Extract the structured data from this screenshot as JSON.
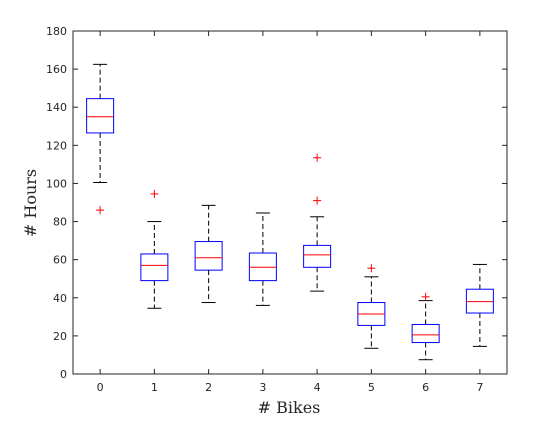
{
  "chart_data": {
    "type": "boxplot",
    "xlabel": "# Bikes",
    "ylabel": "# Hours",
    "ylim": [
      0,
      180
    ],
    "yticks": [
      0,
      20,
      40,
      60,
      80,
      100,
      120,
      140,
      160,
      180
    ],
    "categories": [
      "0",
      "1",
      "2",
      "3",
      "4",
      "5",
      "6",
      "7"
    ],
    "grid": false,
    "colors": {
      "box": "#0000ff",
      "median": "#ff0000",
      "whisker": "#000000",
      "outlier": "#ff0000",
      "axis": "#262626"
    },
    "boxes": [
      {
        "category": "0",
        "whisker_low": 100.5,
        "q1": 126.5,
        "median": 135,
        "q3": 144.5,
        "whisker_high": 162.5,
        "outliers": [
          86
        ]
      },
      {
        "category": "1",
        "whisker_low": 34.5,
        "q1": 49,
        "median": 57,
        "q3": 63,
        "whisker_high": 80,
        "outliers": [
          94.5
        ]
      },
      {
        "category": "2",
        "whisker_low": 37.5,
        "q1": 54.5,
        "median": 61,
        "q3": 69.5,
        "whisker_high": 88.5,
        "outliers": []
      },
      {
        "category": "3",
        "whisker_low": 36,
        "q1": 49,
        "median": 56,
        "q3": 63.5,
        "whisker_high": 84.5,
        "outliers": []
      },
      {
        "category": "4",
        "whisker_low": 43.5,
        "q1": 56,
        "median": 62.5,
        "q3": 67.5,
        "whisker_high": 82.5,
        "outliers": [
          91,
          113.5
        ]
      },
      {
        "category": "5",
        "whisker_low": 13.5,
        "q1": 25.5,
        "median": 31.5,
        "q3": 37.5,
        "whisker_high": 51,
        "outliers": [
          55.5
        ]
      },
      {
        "category": "6",
        "whisker_low": 7.5,
        "q1": 16.5,
        "median": 20.5,
        "q3": 26,
        "whisker_high": 38.5,
        "outliers": [
          40.5
        ]
      },
      {
        "category": "7",
        "whisker_low": 14.5,
        "q1": 32,
        "median": 38,
        "q3": 44.5,
        "whisker_high": 57.5,
        "outliers": []
      }
    ]
  }
}
